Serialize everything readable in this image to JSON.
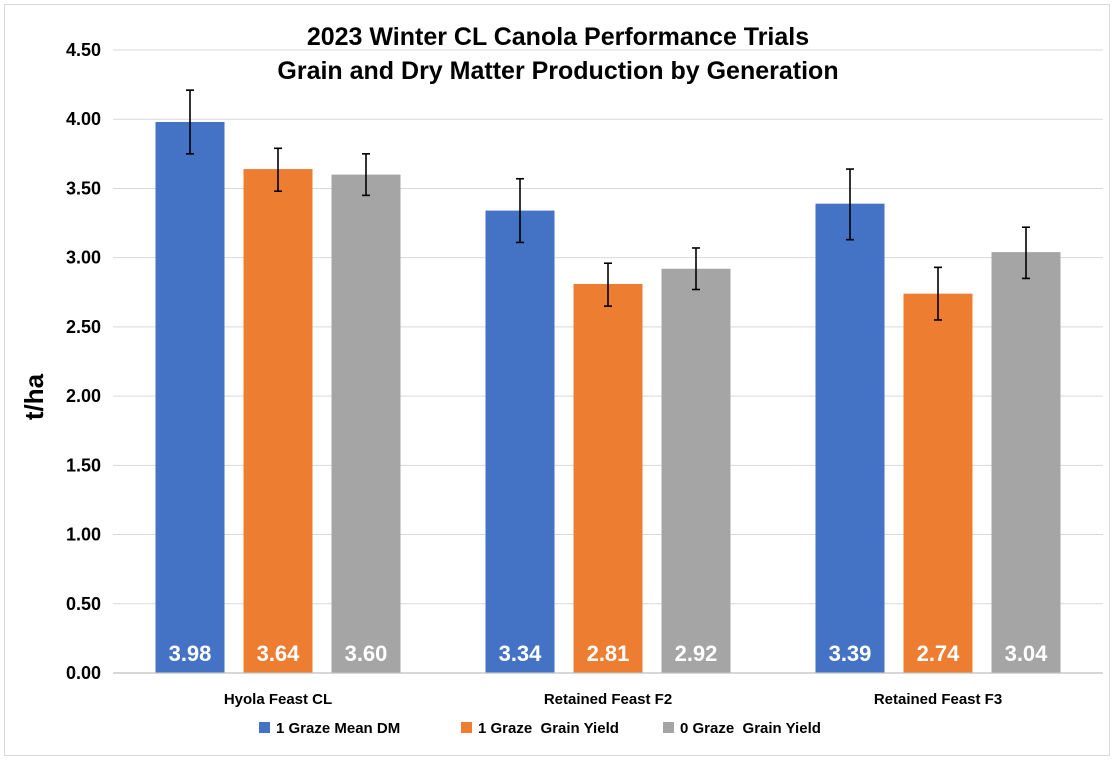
{
  "chart_data": {
    "type": "bar",
    "title": [
      "2023 Winter CL Canola Performance Trials",
      "Grain and Dry Matter Production by Generation"
    ],
    "xlabel": "",
    "ylabel": "t/ha",
    "ylim": [
      0,
      4.5
    ],
    "y_ticks": [
      "0.00",
      "0.50",
      "1.00",
      "1.50",
      "2.00",
      "2.50",
      "3.00",
      "3.50",
      "4.00",
      "4.50"
    ],
    "y_tick_values": [
      0,
      0.5,
      1.0,
      1.5,
      2.0,
      2.5,
      3.0,
      3.5,
      4.0,
      4.5
    ],
    "grid": true,
    "legend_position": "bottom",
    "categories": [
      "Hyola Feast CL",
      "Retained Feast F2",
      "Retained Feast F3"
    ],
    "series": [
      {
        "name": "1 Graze Mean DM",
        "color": "#4472C4",
        "values": [
          3.98,
          3.34,
          3.39
        ],
        "labels": [
          "3.98",
          "3.34",
          "3.39"
        ],
        "error_low": [
          3.75,
          3.11,
          3.13
        ],
        "error_high": [
          4.21,
          3.57,
          3.64
        ]
      },
      {
        "name": "1 Graze  Grain Yield",
        "color": "#ED7D31",
        "values": [
          3.64,
          2.81,
          2.74
        ],
        "labels": [
          "3.64",
          "2.81",
          "2.74"
        ],
        "error_low": [
          3.48,
          2.65,
          2.55
        ],
        "error_high": [
          3.79,
          2.96,
          2.93
        ]
      },
      {
        "name": "0 Graze  Grain Yield",
        "color": "#A5A5A5",
        "values": [
          3.6,
          2.92,
          3.04
        ],
        "labels": [
          "3.60",
          "2.92",
          "3.04"
        ],
        "error_low": [
          3.45,
          2.77,
          2.85
        ],
        "error_high": [
          3.75,
          3.07,
          3.22
        ]
      }
    ]
  }
}
